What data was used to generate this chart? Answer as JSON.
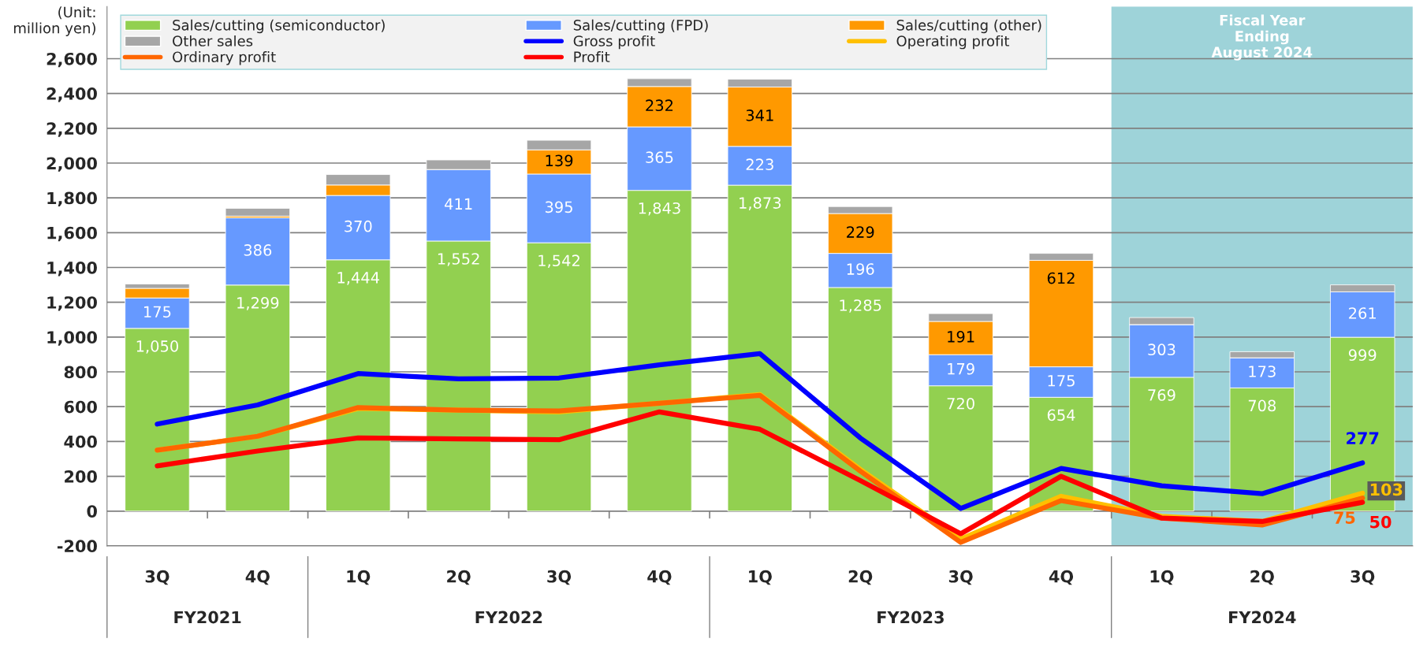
{
  "chart_data": {
    "type": "bar",
    "stacked": true,
    "ylabel": "(Unit:\nmillion yen)",
    "categories": [
      "3Q",
      "4Q",
      "1Q",
      "2Q",
      "3Q",
      "4Q",
      "1Q",
      "2Q",
      "3Q",
      "4Q",
      "1Q",
      "2Q",
      "3Q"
    ],
    "series": [
      {
        "name": "Sales/cutting (semiconductor)",
        "color": "#92d050",
        "values": [
          1050,
          1299,
          1444,
          1552,
          1542,
          1843,
          1873,
          1285,
          720,
          654,
          769,
          708,
          999
        ],
        "value_labels": [
          "1,050",
          "1,299",
          "1,444",
          "1,552",
          "1,542",
          "1,843",
          "1,873",
          "1,285",
          "720",
          "654",
          "769",
          "708",
          "999"
        ]
      },
      {
        "name": "Sales/cutting (FPD)",
        "color": "#6699ff",
        "values": [
          175,
          386,
          370,
          411,
          395,
          365,
          223,
          196,
          179,
          175,
          303,
          173,
          261
        ],
        "value_labels": [
          "175",
          "386",
          "370",
          "411",
          "395",
          "365",
          "223",
          "196",
          "179",
          "175",
          "303",
          "173",
          "261"
        ]
      },
      {
        "name": "Sales/cutting (other)",
        "color": "#ff9900",
        "values": [
          55,
          10,
          60,
          0,
          139,
          232,
          341,
          229,
          191,
          612,
          0,
          0,
          0
        ],
        "value_labels": [
          null,
          null,
          null,
          null,
          "139",
          "232",
          "341",
          "229",
          "191",
          "612",
          null,
          null,
          null
        ]
      },
      {
        "name": "Other sales",
        "color": "#a6a6a6",
        "values": [
          25,
          45,
          60,
          55,
          55,
          45,
          45,
          40,
          45,
          40,
          40,
          35,
          40
        ]
      },
      {
        "name": "Gross profit",
        "type": "line",
        "color": "#0000ff",
        "values": [
          500,
          610,
          790,
          760,
          765,
          840,
          905,
          420,
          15,
          245,
          145,
          100,
          277
        ],
        "value_labels": [
          null,
          null,
          null,
          null,
          null,
          null,
          null,
          null,
          null,
          null,
          null,
          null,
          "277"
        ]
      },
      {
        "name": "Operating profit",
        "type": "line",
        "color": "#ffc000",
        "values": [
          350,
          430,
          590,
          580,
          570,
          620,
          670,
          240,
          -160,
          85,
          -30,
          -60,
          103
        ],
        "value_labels": [
          null,
          null,
          null,
          null,
          null,
          null,
          null,
          null,
          null,
          null,
          null,
          null,
          "103"
        ]
      },
      {
        "name": "Ordinary profit",
        "type": "line",
        "color": "#ff6600",
        "values": [
          350,
          430,
          595,
          580,
          575,
          620,
          665,
          230,
          -180,
          60,
          -40,
          -80,
          75
        ],
        "value_labels": [
          null,
          null,
          null,
          null,
          null,
          null,
          null,
          null,
          null,
          null,
          null,
          null,
          "75"
        ]
      },
      {
        "name": "Profit",
        "type": "line",
        "color": "#ff0000",
        "values": [
          260,
          345,
          420,
          415,
          410,
          570,
          470,
          175,
          -130,
          200,
          -40,
          -60,
          50
        ],
        "value_labels": [
          null,
          null,
          null,
          null,
          null,
          null,
          null,
          null,
          null,
          null,
          null,
          null,
          "50"
        ]
      }
    ],
    "ylim": [
      -200,
      2900
    ],
    "yticks": [
      {
        "value": -200,
        "label": "-200"
      },
      0,
      200,
      400,
      600,
      800,
      {
        "value": 1000,
        "label": "1,000"
      },
      {
        "value": 1200,
        "label": "1,200"
      },
      {
        "value": 1400,
        "label": "1,400"
      },
      {
        "value": 1600,
        "label": "1,600"
      },
      {
        "value": 1800,
        "label": "1,800"
      },
      {
        "value": 2000,
        "label": "2,000"
      },
      {
        "value": 2200,
        "label": "2,200"
      },
      {
        "value": 2400,
        "label": "2,400"
      },
      {
        "value": 2600,
        "label": "2,600"
      }
    ],
    "annotations": [
      "FY2021",
      "FY2022",
      "FY2023",
      "FY2024",
      "Fiscal Year\nEnding\nAugust 2024"
    ],
    "grid": "y",
    "legend": "top left"
  }
}
